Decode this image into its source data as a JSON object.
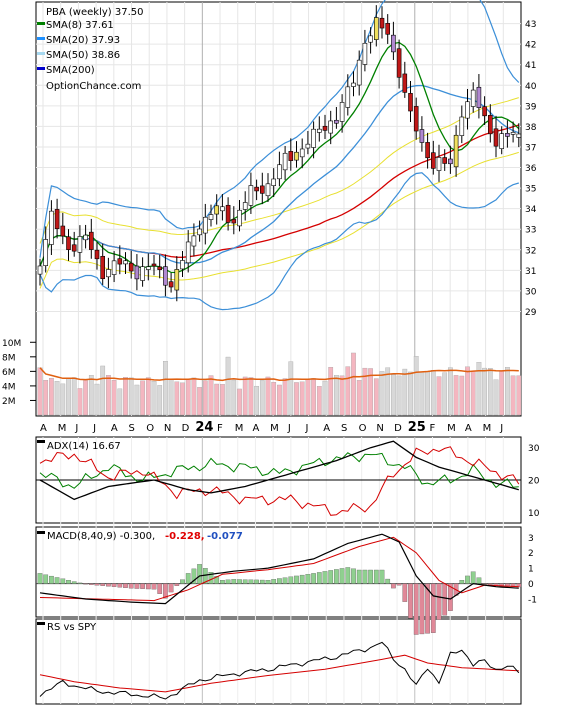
{
  "colors": {
    "sma8": "#008000",
    "sma20": "#1e90ff",
    "sma50": "#e8e85a",
    "sma200": "#d40000",
    "bb": "#3c8fd8",
    "env": "#e8e030",
    "volume_up": "#f4b6c0",
    "volume_down": "#d8d8d8",
    "volume_ma": "#e06010",
    "adx": "#000000",
    "plus_di": "#008000",
    "minus_di": "#d40000",
    "macd": "#000000",
    "signal": "#d40000",
    "hist_pos": "#8fd08f",
    "hist_neg": "#e08898",
    "rs": "#000000",
    "rs_ma": "#d40000"
  },
  "legend": {
    "title": "PBA (weekly) 37.50",
    "sma8": "SMA(8) 37.61",
    "sma20": "SMA(20) 37.93",
    "sma50": "SMA(50) 38.86",
    "sma200": "SMA(200)",
    "source": "OptionChance.com"
  },
  "adx_label": "ADX(14) 16.67",
  "macd_label": "MACD(8,40,9) -0.300,",
  "macd_val1": "-0.228,",
  "macd_val2": "-0.077",
  "rs_label": "RS vs SPY",
  "chart_data": [
    {
      "type": "candlestick",
      "title": "PBA (weekly) 37.50",
      "series_names": [
        "SMA(8) 37.61",
        "SMA(20) 37.93",
        "SMA(50) 38.86",
        "SMA(200)"
      ],
      "x_months": [
        "A",
        "M",
        "J",
        "J",
        "A",
        "S",
        "O",
        "N",
        "D",
        "24",
        "F",
        "M",
        "A",
        "M",
        "J",
        "J",
        "A",
        "S",
        "O",
        "N",
        "D",
        "25",
        "F",
        "M",
        "A",
        "M",
        "J"
      ],
      "y_ticks": [
        29,
        30,
        31,
        32,
        33,
        34,
        35,
        36,
        37,
        38,
        39,
        40,
        41,
        42,
        43
      ],
      "ylim": [
        28.0,
        44.0
      ],
      "close_anchors": [
        [
          0,
          31.5
        ],
        [
          2,
          33.6
        ],
        [
          5,
          32.2
        ],
        [
          8,
          32.6
        ],
        [
          11,
          31.0
        ],
        [
          14,
          31.4
        ],
        [
          17,
          31.0
        ],
        [
          20,
          31.2
        ],
        [
          23,
          30.4
        ],
        [
          25,
          31.5
        ],
        [
          28,
          33.3
        ],
        [
          31,
          34.0
        ],
        [
          34,
          33.5
        ],
        [
          37,
          34.8
        ],
        [
          40,
          35.2
        ],
        [
          43,
          36.4
        ],
        [
          46,
          37.0
        ],
        [
          49,
          37.8
        ],
        [
          52,
          38.5
        ],
        [
          55,
          40.2
        ],
        [
          57,
          42.2
        ],
        [
          59,
          43.0
        ],
        [
          61,
          42.6
        ],
        [
          63,
          40.8
        ],
        [
          65,
          38.6
        ],
        [
          67,
          37.2
        ],
        [
          69,
          36.3
        ],
        [
          72,
          36.2
        ],
        [
          74,
          38.8
        ],
        [
          76,
          39.6
        ],
        [
          78,
          38.4
        ],
        [
          80,
          37.4
        ],
        [
          82,
          37.6
        ],
        [
          84,
          37.5
        ]
      ]
    },
    {
      "type": "bar",
      "title": "Volume",
      "y_ticks": [
        "2M",
        "4M",
        "6M",
        "8M",
        "10M"
      ],
      "ylim": [
        0,
        11
      ]
    },
    {
      "type": "line",
      "title": "ADX(14) 16.67",
      "series_names": [
        "ADX",
        "+DI",
        "-DI"
      ],
      "y_ticks": [
        10,
        20,
        30
      ],
      "ylim": [
        7,
        33
      ],
      "adx_anchors": [
        [
          0,
          20
        ],
        [
          6,
          14
        ],
        [
          12,
          18
        ],
        [
          20,
          20
        ],
        [
          26,
          17
        ],
        [
          30,
          16
        ],
        [
          36,
          18
        ],
        [
          44,
          22
        ],
        [
          52,
          26
        ],
        [
          58,
          30
        ],
        [
          62,
          32
        ],
        [
          66,
          27
        ],
        [
          70,
          24
        ],
        [
          76,
          21
        ],
        [
          84,
          17
        ]
      ],
      "plus_di_anchors": [
        [
          0,
          22
        ],
        [
          6,
          18
        ],
        [
          12,
          24
        ],
        [
          18,
          20
        ],
        [
          24,
          23
        ],
        [
          30,
          25
        ],
        [
          36,
          24
        ],
        [
          42,
          22
        ],
        [
          50,
          26
        ],
        [
          58,
          28
        ],
        [
          64,
          24
        ],
        [
          68,
          19
        ],
        [
          72,
          20
        ],
        [
          76,
          23
        ],
        [
          80,
          19
        ],
        [
          84,
          18
        ]
      ],
      "minus_di_anchors": [
        [
          0,
          26
        ],
        [
          6,
          28
        ],
        [
          12,
          21
        ],
        [
          18,
          23
        ],
        [
          24,
          16
        ],
        [
          30,
          17
        ],
        [
          36,
          14
        ],
        [
          44,
          14
        ],
        [
          52,
          10
        ],
        [
          58,
          12
        ],
        [
          62,
          22
        ],
        [
          66,
          28
        ],
        [
          70,
          30
        ],
        [
          74,
          27
        ],
        [
          78,
          24
        ],
        [
          82,
          21
        ],
        [
          84,
          19
        ]
      ]
    },
    {
      "type": "line",
      "title": "MACD(8,40,9) -0.300, -0.228, -0.077",
      "series_names": [
        "MACD",
        "Signal",
        "Histogram"
      ],
      "y_ticks": [
        -1,
        0,
        1,
        2,
        3
      ],
      "ylim": [
        -2.1,
        3.6
      ],
      "macd_anchors": [
        [
          0,
          -0.6
        ],
        [
          8,
          -1.0
        ],
        [
          16,
          -1.2
        ],
        [
          22,
          -1.3
        ],
        [
          28,
          0.5
        ],
        [
          34,
          0.8
        ],
        [
          40,
          1.0
        ],
        [
          48,
          1.6
        ],
        [
          54,
          2.6
        ],
        [
          60,
          3.2
        ],
        [
          63,
          2.7
        ],
        [
          66,
          0.5
        ],
        [
          69,
          -0.8
        ],
        [
          72,
          -1.0
        ],
        [
          76,
          0.0
        ],
        [
          80,
          -0.2
        ],
        [
          84,
          -0.3
        ]
      ],
      "signal_anchors": [
        [
          0,
          -0.9
        ],
        [
          10,
          -1.0
        ],
        [
          20,
          -1.1
        ],
        [
          26,
          -0.4
        ],
        [
          32,
          0.6
        ],
        [
          40,
          0.9
        ],
        [
          48,
          1.3
        ],
        [
          56,
          2.4
        ],
        [
          62,
          3.0
        ],
        [
          66,
          2.0
        ],
        [
          70,
          0.2
        ],
        [
          74,
          -0.6
        ],
        [
          78,
          -0.1
        ],
        [
          84,
          -0.2
        ]
      ]
    },
    {
      "type": "line",
      "title": "RS vs SPY",
      "series_names": [
        "RS",
        "RS MA"
      ],
      "ylim": [
        0,
        100
      ],
      "rs_anchors": [
        [
          0,
          10
        ],
        [
          4,
          25
        ],
        [
          10,
          14
        ],
        [
          16,
          10
        ],
        [
          22,
          5
        ],
        [
          28,
          28
        ],
        [
          34,
          36
        ],
        [
          40,
          42
        ],
        [
          46,
          50
        ],
        [
          52,
          58
        ],
        [
          58,
          70
        ],
        [
          60,
          76
        ],
        [
          62,
          56
        ],
        [
          64,
          42
        ],
        [
          66,
          20
        ],
        [
          68,
          45
        ],
        [
          70,
          25
        ],
        [
          72,
          60
        ],
        [
          74,
          68
        ],
        [
          76,
          48
        ],
        [
          78,
          52
        ],
        [
          80,
          42
        ],
        [
          82,
          46
        ],
        [
          84,
          38
        ]
      ],
      "rs_ma_anchors": [
        [
          0,
          35
        ],
        [
          6,
          26
        ],
        [
          14,
          18
        ],
        [
          22,
          13
        ],
        [
          30,
          24
        ],
        [
          40,
          34
        ],
        [
          50,
          42
        ],
        [
          58,
          52
        ],
        [
          64,
          60
        ],
        [
          68,
          50
        ],
        [
          74,
          44
        ],
        [
          84,
          40
        ]
      ]
    }
  ]
}
